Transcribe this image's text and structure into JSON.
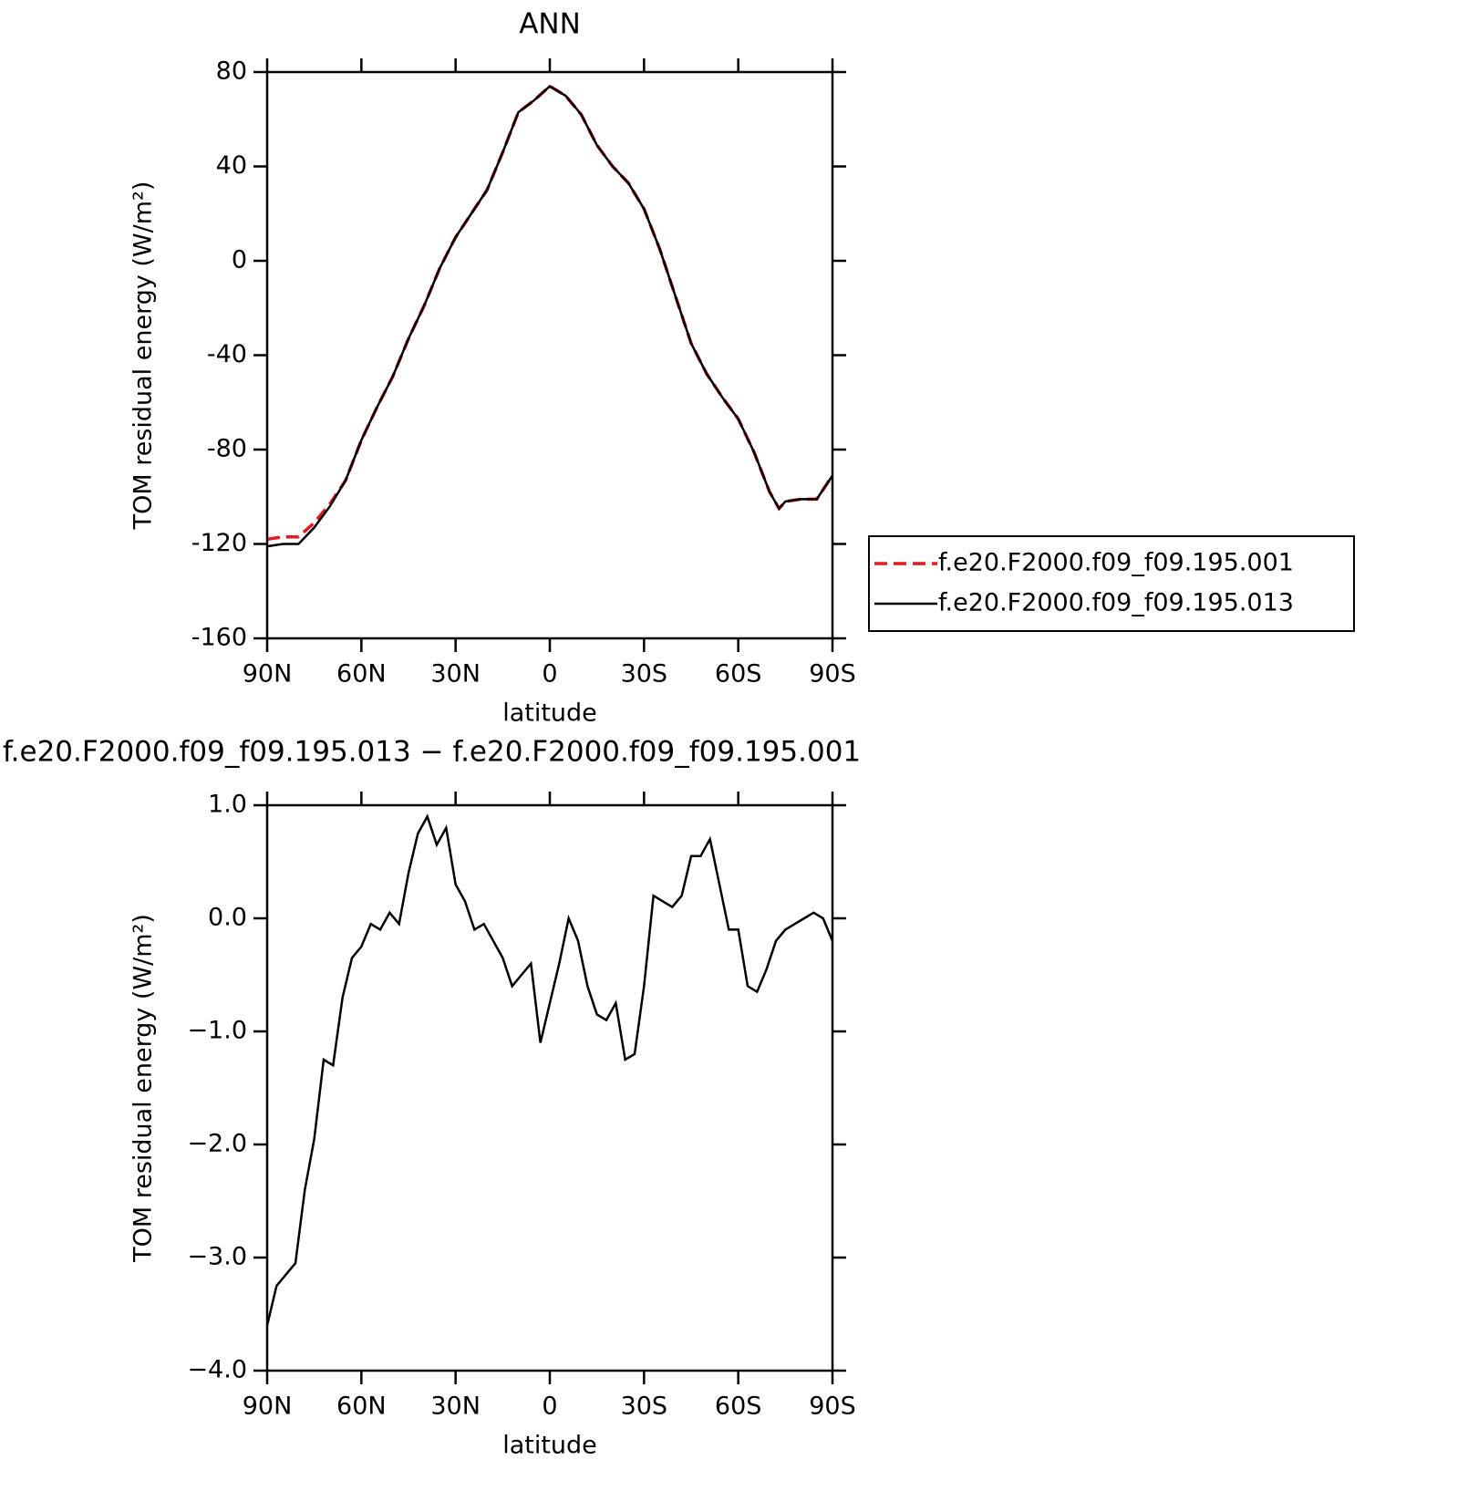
{
  "chart_data": [
    {
      "type": "line",
      "title": "ANN",
      "xlabel": "latitude",
      "ylabel": "TOM residual energy (W/m²)",
      "x": [
        90,
        85,
        80,
        75,
        70,
        65,
        60,
        55,
        50,
        45,
        40,
        35,
        30,
        25,
        20,
        15,
        10,
        5,
        0,
        -5,
        -10,
        -15,
        -20,
        -25,
        -30,
        -35,
        -40,
        -45,
        -50,
        -55,
        -60,
        -65,
        -70,
        -73,
        -75,
        -80,
        -85,
        -90
      ],
      "series": [
        {
          "name": "f.e20.F2000.f09_f09.195.001",
          "color": "#e41a1c",
          "dash": true,
          "values": [
            -118,
            -117,
            -117,
            -111,
            -103,
            -93,
            -76,
            -62,
            -49,
            -33,
            -19,
            -3,
            10,
            20,
            30,
            46,
            63,
            68,
            74,
            70,
            62,
            49,
            40,
            33,
            22,
            5,
            -15,
            -35,
            -48,
            -58,
            -67,
            -81,
            -98,
            -105,
            -102,
            -101,
            -101,
            -91
          ]
        },
        {
          "name": "f.e20.F2000.f09_f09.195.013",
          "color": "#000000",
          "dash": false,
          "values": [
            -121,
            -120,
            -120,
            -113,
            -104,
            -93,
            -76,
            -62,
            -49,
            -33,
            -19,
            -3,
            10,
            20,
            30,
            46,
            63,
            68,
            74,
            70,
            62,
            49,
            40,
            33,
            22,
            5,
            -15,
            -35,
            -48,
            -58,
            -67,
            -81,
            -98,
            -105,
            -102,
            -101,
            -101,
            -91
          ]
        }
      ],
      "xlim": [
        90,
        -90
      ],
      "xticks": [
        {
          "value": 90,
          "label": "90N"
        },
        {
          "value": 60,
          "label": "60N"
        },
        {
          "value": 30,
          "label": "30N"
        },
        0,
        {
          "value": -30,
          "label": "30S"
        },
        {
          "value": -60,
          "label": "60S"
        },
        {
          "value": -90,
          "label": "90S"
        }
      ],
      "ylim": [
        -160,
        80
      ],
      "yticks": [
        80,
        40,
        0,
        -40,
        -80,
        -120,
        -160
      ],
      "legend": "right"
    },
    {
      "type": "line",
      "title": "f.e20.F2000.f09_f09.195.013 − f.e20.F2000.f09_f09.195.001",
      "xlabel": "latitude",
      "ylabel": "TOM residual energy (W/m²)",
      "x": [
        90,
        87,
        84,
        81,
        78,
        75,
        72,
        69,
        66,
        63,
        60,
        57,
        54,
        51,
        48,
        45,
        42,
        39,
        36,
        33,
        30,
        27,
        24,
        21,
        18,
        15,
        12,
        9,
        6,
        3,
        0,
        -3,
        -6,
        -9,
        -12,
        -15,
        -18,
        -21,
        -24,
        -27,
        -30,
        -33,
        -36,
        -39,
        -42,
        -45,
        -48,
        -51,
        -54,
        -57,
        -60,
        -63,
        -66,
        -69,
        -72,
        -75,
        -78,
        -81,
        -84,
        -87,
        -90
      ],
      "series": [
        {
          "color": "#000000",
          "dash": false,
          "values": [
            -3.6,
            -3.25,
            -3.15,
            -3.05,
            -2.4,
            -1.95,
            -1.25,
            -1.3,
            -0.7,
            -0.35,
            -0.25,
            -0.05,
            -0.1,
            0.05,
            -0.05,
            0.4,
            0.75,
            0.9,
            0.65,
            0.8,
            0.3,
            0.15,
            -0.1,
            -0.05,
            -0.2,
            -0.35,
            -0.6,
            -0.5,
            -0.4,
            -1.1,
            -0.75,
            -0.4,
            0.0,
            -0.2,
            -0.6,
            -0.85,
            -0.9,
            -0.75,
            -1.25,
            -1.2,
            -0.6,
            0.2,
            0.15,
            0.1,
            0.2,
            0.55,
            0.55,
            0.7,
            0.3,
            -0.1,
            -0.1,
            -0.6,
            -0.65,
            -0.45,
            -0.2,
            -0.1,
            -0.05,
            0.0,
            0.05,
            0.0,
            -0.2
          ]
        }
      ],
      "xlim": [
        90,
        -90
      ],
      "xticks": [
        {
          "value": 90,
          "label": "90N"
        },
        {
          "value": 60,
          "label": "60N"
        },
        {
          "value": 30,
          "label": "30N"
        },
        0,
        {
          "value": -30,
          "label": "30S"
        },
        {
          "value": -60,
          "label": "60S"
        },
        {
          "value": -90,
          "label": "90S"
        }
      ],
      "ylim": [
        -4,
        1
      ],
      "yticks": [
        {
          "value": 1,
          "label": "1.0"
        },
        {
          "value": 0,
          "label": "0.0"
        },
        {
          "value": -1,
          "label": "−1.0"
        },
        {
          "value": -2,
          "label": "−2.0"
        },
        {
          "value": -3,
          "label": "−3.0"
        },
        {
          "value": -4,
          "label": "−4.0"
        }
      ]
    }
  ]
}
